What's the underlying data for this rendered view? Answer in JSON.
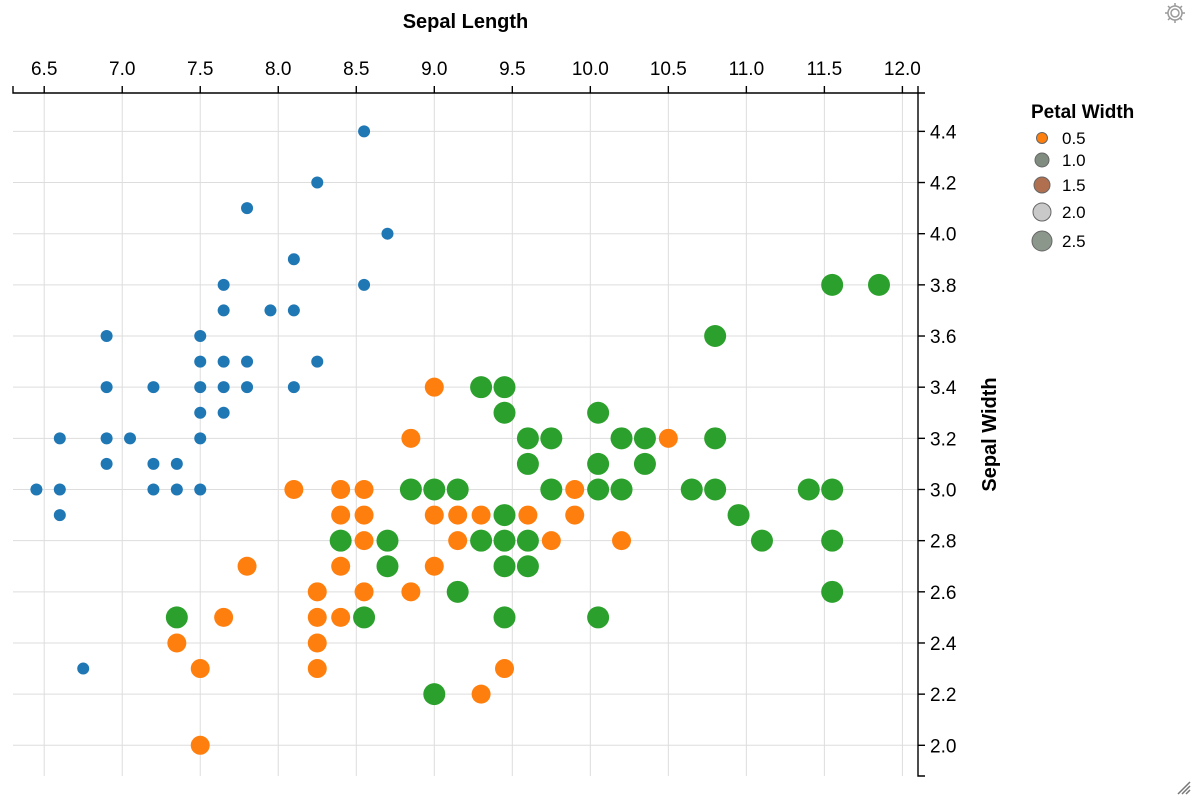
{
  "icons": {
    "settings": "gear-icon",
    "resize": "resize-handle-icon"
  },
  "chart_data": {
    "type": "scatter",
    "xlabel": "Sepal Length",
    "ylabel": "Sepal Width",
    "xlim": [
      6.3,
      12.1
    ],
    "ylim": [
      1.88,
      4.55
    ],
    "x_ticks": [
      6.5,
      7.0,
      7.5,
      8.0,
      8.5,
      9.0,
      9.5,
      10.0,
      10.5,
      11.0,
      11.5,
      12.0
    ],
    "y_ticks": [
      2.0,
      2.2,
      2.4,
      2.6,
      2.8,
      3.0,
      3.2,
      3.4,
      3.6,
      3.8,
      4.0,
      4.2,
      4.4
    ],
    "grid": true,
    "x_axis_position": "top",
    "y_axis_position": "right",
    "legend": {
      "title": "Petal Width",
      "placement": "right",
      "entries": [
        {
          "label": "0.5",
          "value": 0.5,
          "color": "#ff7f0e"
        },
        {
          "label": "1.0",
          "value": 1.0,
          "color": "#7f8c7f"
        },
        {
          "label": "1.5",
          "value": 1.5,
          "color": "#b07050"
        },
        {
          "label": "2.0",
          "value": 2.0,
          "color": "#c9c9c9"
        },
        {
          "label": "2.5",
          "value": 2.5,
          "color": "#8c978c"
        }
      ]
    },
    "series": [
      {
        "color": "#1f77b4",
        "points": [
          [
            8.55,
            4.4
          ],
          [
            8.25,
            4.2
          ],
          [
            7.8,
            4.1
          ],
          [
            8.7,
            4.0
          ],
          [
            8.1,
            3.9
          ],
          [
            7.65,
            3.8
          ],
          [
            8.55,
            3.8
          ],
          [
            7.65,
            3.7
          ],
          [
            7.95,
            3.7
          ],
          [
            8.1,
            3.7
          ],
          [
            6.9,
            3.6
          ],
          [
            7.5,
            3.6
          ],
          [
            7.5,
            3.5
          ],
          [
            7.65,
            3.5
          ],
          [
            7.8,
            3.5
          ],
          [
            8.25,
            3.5
          ],
          [
            6.9,
            3.4
          ],
          [
            7.2,
            3.4
          ],
          [
            7.5,
            3.4
          ],
          [
            7.65,
            3.4
          ],
          [
            7.8,
            3.4
          ],
          [
            8.1,
            3.4
          ],
          [
            7.5,
            3.3
          ],
          [
            7.65,
            3.3
          ],
          [
            6.6,
            3.2
          ],
          [
            6.9,
            3.2
          ],
          [
            7.05,
            3.2
          ],
          [
            7.5,
            3.2
          ],
          [
            6.9,
            3.1
          ],
          [
            7.2,
            3.1
          ],
          [
            7.35,
            3.1
          ],
          [
            6.45,
            3.0
          ],
          [
            6.6,
            3.0
          ],
          [
            7.2,
            3.0
          ],
          [
            7.35,
            3.0
          ],
          [
            7.5,
            3.0
          ],
          [
            6.6,
            2.9
          ],
          [
            6.75,
            2.3
          ]
        ]
      },
      {
        "color": "#ff7f0e",
        "points": [
          [
            9.0,
            3.4
          ],
          [
            8.85,
            3.2
          ],
          [
            10.5,
            3.2
          ],
          [
            8.1,
            3.0
          ],
          [
            8.4,
            3.0
          ],
          [
            8.55,
            3.0
          ],
          [
            9.9,
            3.0
          ],
          [
            8.4,
            2.9
          ],
          [
            8.55,
            2.9
          ],
          [
            9.0,
            2.9
          ],
          [
            9.15,
            2.9
          ],
          [
            9.3,
            2.9
          ],
          [
            9.6,
            2.9
          ],
          [
            9.9,
            2.9
          ],
          [
            8.55,
            2.8
          ],
          [
            9.15,
            2.8
          ],
          [
            9.75,
            2.8
          ],
          [
            10.2,
            2.8
          ],
          [
            7.8,
            2.7
          ],
          [
            8.4,
            2.7
          ],
          [
            9.0,
            2.7
          ],
          [
            8.25,
            2.6
          ],
          [
            8.55,
            2.6
          ],
          [
            8.85,
            2.6
          ],
          [
            7.65,
            2.5
          ],
          [
            8.25,
            2.5
          ],
          [
            8.4,
            2.5
          ],
          [
            7.35,
            2.4
          ],
          [
            8.25,
            2.4
          ],
          [
            7.5,
            2.3
          ],
          [
            8.25,
            2.3
          ],
          [
            9.45,
            2.3
          ],
          [
            9.3,
            2.2
          ],
          [
            7.5,
            2.0
          ]
        ]
      },
      {
        "color": "#2ca02c",
        "points": [
          [
            11.55,
            3.8
          ],
          [
            11.85,
            3.8
          ],
          [
            10.8,
            3.6
          ],
          [
            9.3,
            3.4
          ],
          [
            9.45,
            3.4
          ],
          [
            9.45,
            3.3
          ],
          [
            10.05,
            3.3
          ],
          [
            9.6,
            3.2
          ],
          [
            9.75,
            3.2
          ],
          [
            10.2,
            3.2
          ],
          [
            10.35,
            3.2
          ],
          [
            10.8,
            3.2
          ],
          [
            9.6,
            3.1
          ],
          [
            10.05,
            3.1
          ],
          [
            10.35,
            3.1
          ],
          [
            8.85,
            3.0
          ],
          [
            9.0,
            3.0
          ],
          [
            9.15,
            3.0
          ],
          [
            9.75,
            3.0
          ],
          [
            10.05,
            3.0
          ],
          [
            10.2,
            3.0
          ],
          [
            10.65,
            3.0
          ],
          [
            10.8,
            3.0
          ],
          [
            11.4,
            3.0
          ],
          [
            11.55,
            3.0
          ],
          [
            9.45,
            2.9
          ],
          [
            10.95,
            2.9
          ],
          [
            8.4,
            2.8
          ],
          [
            8.7,
            2.8
          ],
          [
            9.3,
            2.8
          ],
          [
            9.45,
            2.8
          ],
          [
            9.6,
            2.8
          ],
          [
            11.1,
            2.8
          ],
          [
            11.55,
            2.8
          ],
          [
            8.7,
            2.7
          ],
          [
            9.45,
            2.7
          ],
          [
            9.6,
            2.7
          ],
          [
            9.15,
            2.6
          ],
          [
            11.55,
            2.6
          ],
          [
            7.35,
            2.5
          ],
          [
            8.55,
            2.5
          ],
          [
            9.45,
            2.5
          ],
          [
            10.05,
            2.5
          ],
          [
            9.0,
            2.2
          ]
        ]
      }
    ]
  }
}
